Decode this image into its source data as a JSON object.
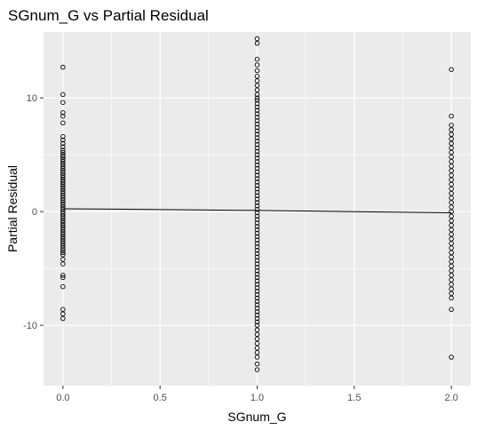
{
  "chart_data": {
    "type": "scatter",
    "title": "SGnum_G vs Partial Residual",
    "xlabel": "SGnum_G",
    "ylabel": "Partial Residual",
    "xlim": [
      -0.1,
      2.1
    ],
    "ylim": [
      -15.3,
      15.8
    ],
    "xticks": [
      0.0,
      0.5,
      1.0,
      1.5,
      2.0
    ],
    "xtick_labels": [
      "0.0",
      "0.5",
      "1.0",
      "1.5",
      "2.0"
    ],
    "yticks": [
      -10,
      0,
      10
    ],
    "ytick_labels": [
      "-10",
      "0",
      "10"
    ],
    "grid": true,
    "panel_background": "#ebebeb",
    "grid_color": "#ffffff",
    "point_color": "#000000",
    "line_color": "#000000",
    "fit_line": {
      "x": [
        0.0,
        0.25,
        0.5,
        0.75,
        1.0,
        1.25,
        1.5,
        1.75,
        2.0
      ],
      "y": [
        0.25,
        0.22,
        0.18,
        0.14,
        0.1,
        0.05,
        0.0,
        -0.05,
        -0.1
      ]
    },
    "series": [
      {
        "x_value": 0.0,
        "y": [
          12.7,
          10.3,
          9.6,
          8.7,
          8.4,
          7.8,
          6.6,
          6.3,
          6.0,
          5.7,
          5.4,
          5.2,
          5.0,
          4.8,
          4.6,
          4.4,
          4.2,
          4.0,
          3.8,
          3.6,
          3.4,
          3.2,
          3.0,
          2.8,
          2.6,
          2.4,
          2.2,
          2.0,
          1.8,
          1.6,
          1.4,
          1.2,
          1.0,
          0.8,
          0.6,
          0.4,
          0.2,
          0.0,
          -0.2,
          -0.4,
          -0.6,
          -0.8,
          -1.0,
          -1.2,
          -1.4,
          -1.6,
          -1.8,
          -2.0,
          -2.2,
          -2.4,
          -2.6,
          -2.8,
          -3.0,
          -3.2,
          -3.4,
          -3.6,
          -3.8,
          -4.2,
          -4.6,
          -5.6,
          -5.8,
          -6.6,
          -8.6,
          -9.0,
          -9.4
        ]
      },
      {
        "x_value": 1.0,
        "y": [
          15.2,
          14.8,
          13.4,
          12.9,
          12.4,
          11.9,
          11.5,
          11.1,
          10.7,
          10.3,
          10.0,
          9.8,
          9.5,
          9.2,
          8.9,
          8.6,
          8.3,
          8.0,
          7.7,
          7.4,
          7.1,
          6.8,
          6.5,
          6.2,
          5.9,
          5.6,
          5.3,
          5.0,
          4.7,
          4.4,
          4.1,
          3.8,
          3.5,
          3.2,
          2.9,
          2.6,
          2.3,
          2.0,
          1.7,
          1.4,
          1.1,
          0.8,
          0.5,
          0.2,
          -0.1,
          -0.4,
          -0.7,
          -1.0,
          -1.3,
          -1.6,
          -1.9,
          -2.2,
          -2.5,
          -2.8,
          -3.1,
          -3.4,
          -3.7,
          -4.0,
          -4.3,
          -4.6,
          -4.9,
          -5.2,
          -5.5,
          -5.8,
          -6.1,
          -6.4,
          -6.7,
          -7.0,
          -7.3,
          -7.6,
          -7.9,
          -8.2,
          -8.5,
          -8.8,
          -9.1,
          -9.4,
          -9.7,
          -10.0,
          -10.4,
          -10.8,
          -11.2,
          -11.6,
          -12.0,
          -12.4,
          -12.8,
          -13.4,
          -13.9
        ]
      },
      {
        "x_value": 2.0,
        "y": [
          12.5,
          8.4,
          7.6,
          7.2,
          6.8,
          6.4,
          6.0,
          5.6,
          5.2,
          4.8,
          4.4,
          4.0,
          3.6,
          3.2,
          2.8,
          2.4,
          2.0,
          1.6,
          1.2,
          0.8,
          0.4,
          0.0,
          -0.4,
          -0.8,
          -1.2,
          -1.6,
          -2.0,
          -2.4,
          -2.8,
          -3.2,
          -3.6,
          -4.0,
          -4.4,
          -4.8,
          -5.2,
          -5.6,
          -6.0,
          -6.4,
          -6.8,
          -7.2,
          -7.6,
          -8.6,
          -12.8
        ]
      }
    ]
  }
}
